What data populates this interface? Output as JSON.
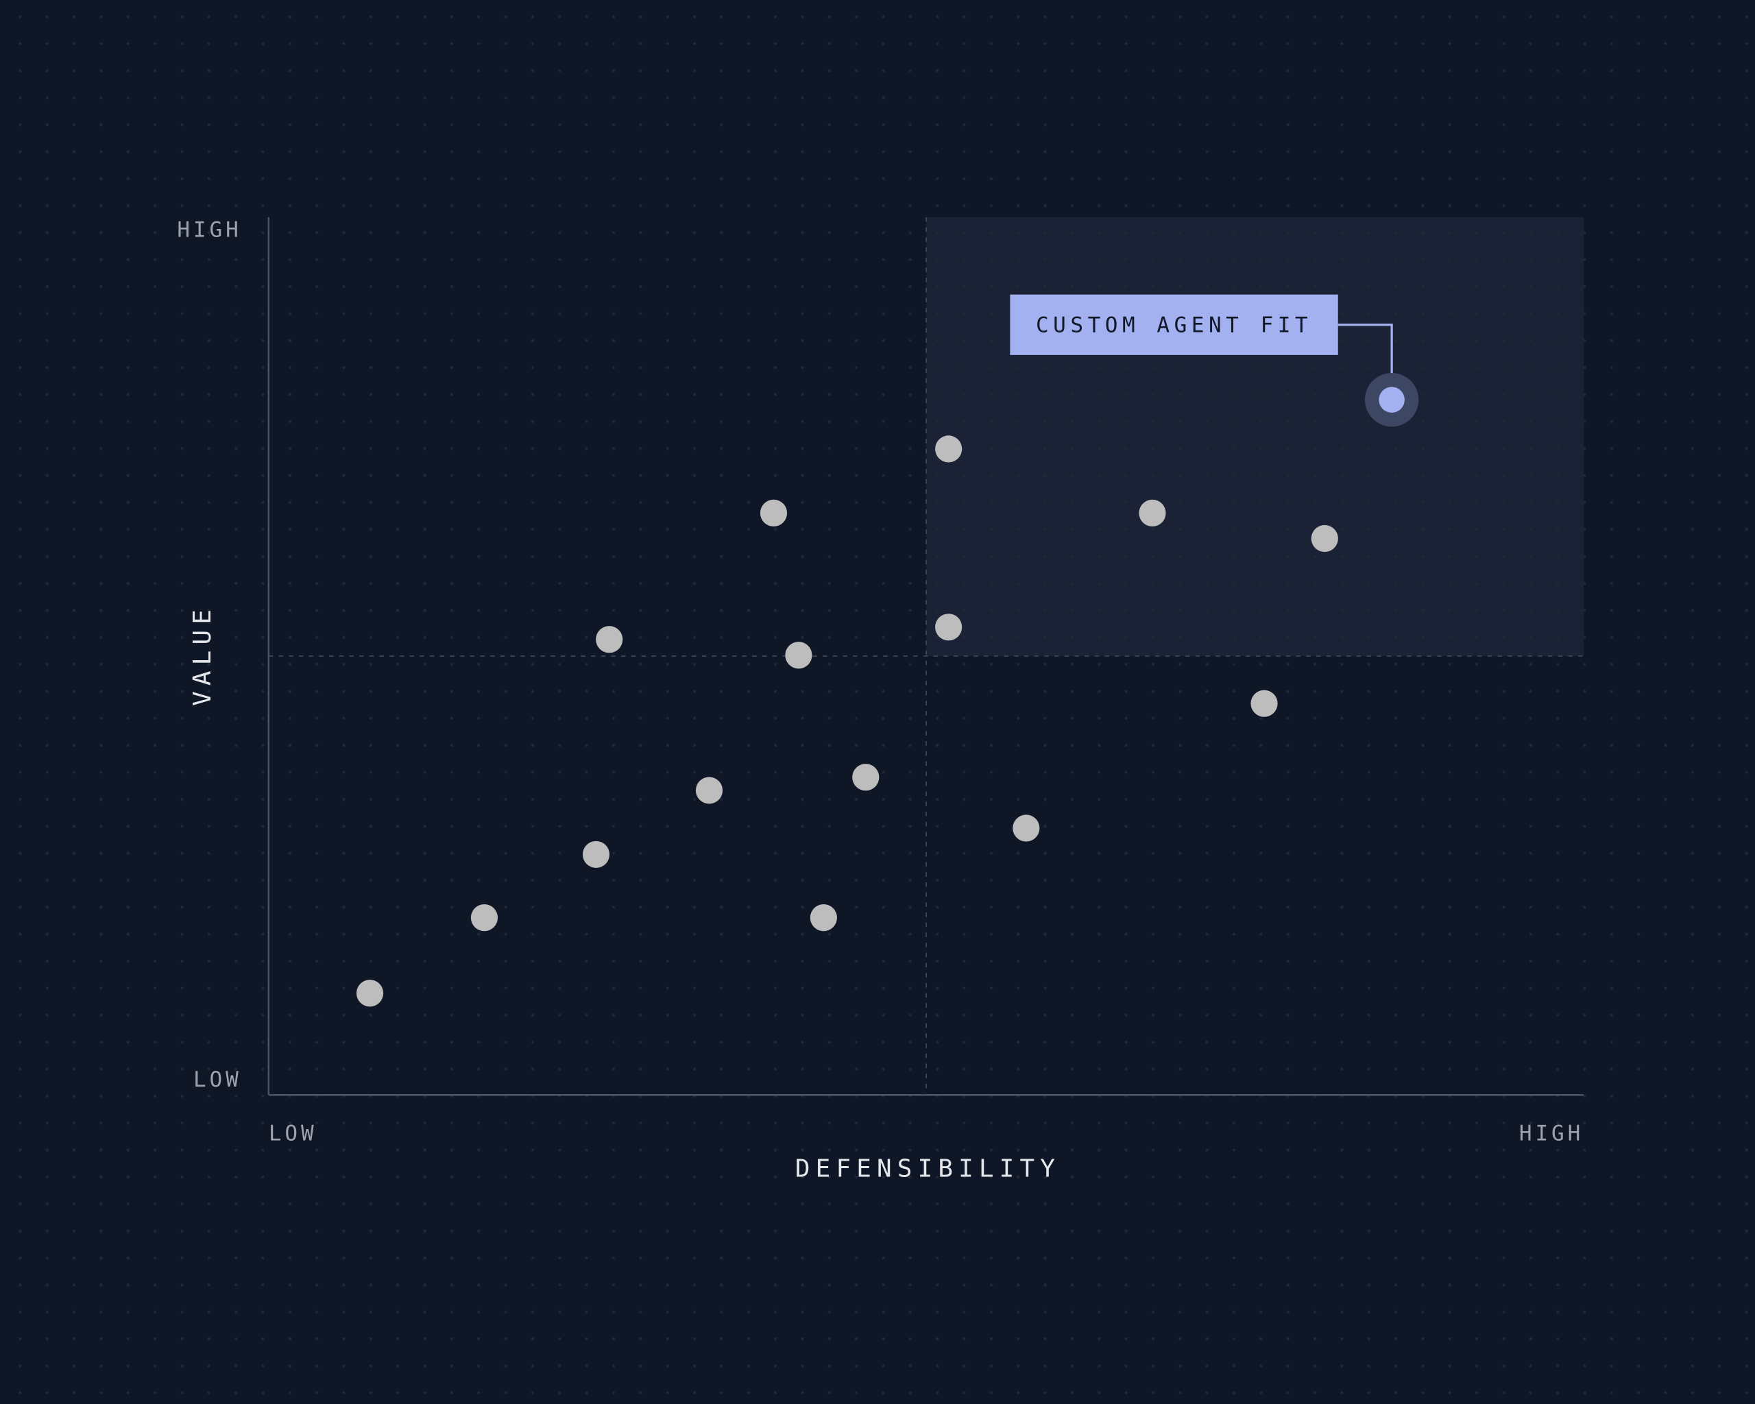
{
  "chart_data": {
    "type": "scatter",
    "x_label": "DEFENSIBILITY",
    "y_label": "VALUE",
    "xlim": [
      0,
      100
    ],
    "ylim": [
      0,
      100
    ],
    "xticks": [
      {
        "value": 0,
        "label": "LOW"
      },
      {
        "value": 100,
        "label": "HIGH"
      }
    ],
    "yticks": [
      {
        "value": 0,
        "label": "LOW"
      },
      {
        "value": 100,
        "label": "HIGH"
      }
    ],
    "x_divider": 50,
    "y_divider": 50,
    "color": "#bdbdbd",
    "x": [
      7.7,
      16.4,
      24.9,
      33.5,
      25.9,
      38.4,
      40.3,
      45.4,
      42.2,
      51.7,
      51.7,
      57.6,
      67.2,
      80.3,
      75.7
    ],
    "y": [
      11.6,
      20.2,
      27.4,
      34.7,
      51.9,
      66.3,
      50.1,
      36.2,
      20.2,
      73.6,
      53.3,
      30.4,
      66.3,
      63.4,
      44.6
    ],
    "highlight": {
      "label": "CUSTOM AGENT FIT",
      "x": 85.4,
      "y": 79.2,
      "color": "#a3b1f0"
    }
  }
}
